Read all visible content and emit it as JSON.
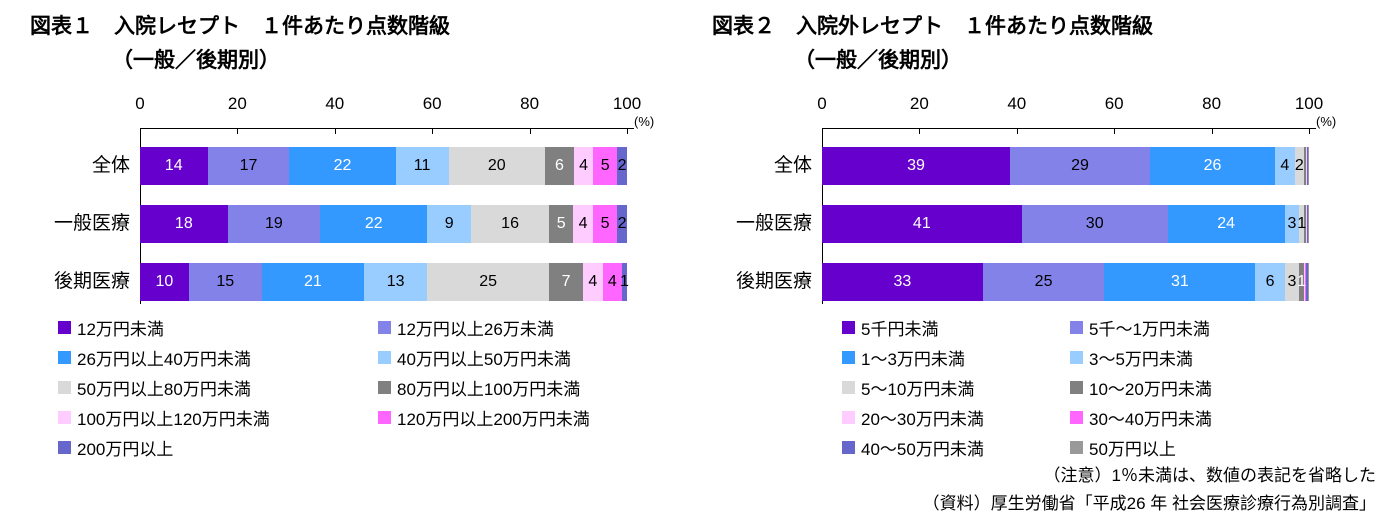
{
  "notes": {
    "line1": "（注意）1％未満は、数値の表記を省略した",
    "line2": "（資料）厚生労働省「平成26 年 社会医療診療行為別調査」"
  },
  "chart_data": [
    {
      "type": "bar",
      "orientation": "horizontal-stacked",
      "title": "図表１　入院レセプト　１件あたり点数階級",
      "subtitle": "（一般／後期別）",
      "unit_label": "(%)",
      "xlim": [
        0,
        100
      ],
      "x_ticks": [
        0,
        20,
        40,
        60,
        80,
        100
      ],
      "grid": false,
      "legend_position": "bottom",
      "categories": [
        "全体",
        "一般医療",
        "後期医療"
      ],
      "series": [
        {
          "name": "12万円未満",
          "color": "#6600CC",
          "label_color": "#FFFFFF",
          "values": [
            14,
            18,
            10
          ]
        },
        {
          "name": "12万円以上26万未満",
          "color": "#8282E8",
          "label_color": "#000000",
          "values": [
            17,
            19,
            15
          ]
        },
        {
          "name": "26万円以上40万円未満",
          "color": "#3399FF",
          "label_color": "#FFFFFF",
          "values": [
            22,
            22,
            21
          ]
        },
        {
          "name": "40万円以上50万円未満",
          "color": "#99CCFF",
          "label_color": "#000000",
          "values": [
            11,
            9,
            13
          ]
        },
        {
          "name": "50万円以上80万円未満",
          "color": "#D9D9D9",
          "label_color": "#000000",
          "values": [
            20,
            16,
            25
          ]
        },
        {
          "name": "80万円以上100万円未満",
          "color": "#808080",
          "label_color": "#FFFFFF",
          "values": [
            6,
            5,
            7
          ]
        },
        {
          "name": "100万円以上120万円未満",
          "color": "#FFCCFF",
          "label_color": "#000000",
          "values": [
            4,
            4,
            4
          ]
        },
        {
          "name": "120万円以上200万円未満",
          "color": "#FF66FF",
          "label_color": "#000000",
          "values": [
            5,
            5,
            4
          ]
        },
        {
          "name": "200万円以上",
          "color": "#6666CC",
          "label_color": "#000000",
          "values": [
            2,
            2,
            1
          ]
        }
      ]
    },
    {
      "type": "bar",
      "orientation": "horizontal-stacked",
      "title": "図表２　入院外レセプト　１件あたり点数階級",
      "subtitle": "（一般／後期別）",
      "unit_label": "(%)",
      "xlim": [
        0,
        100
      ],
      "x_ticks": [
        0,
        20,
        40,
        60,
        80,
        100
      ],
      "grid": false,
      "legend_position": "bottom",
      "categories": [
        "全体",
        "一般医療",
        "後期医療"
      ],
      "series": [
        {
          "name": "5千円未満",
          "color": "#6600CC",
          "label_color": "#FFFFFF",
          "values": [
            39,
            41,
            33
          ]
        },
        {
          "name": "5千～1万円未満",
          "color": "#8282E8",
          "label_color": "#000000",
          "values": [
            29,
            30,
            25
          ]
        },
        {
          "name": "1～3万円未満",
          "color": "#3399FF",
          "label_color": "#FFFFFF",
          "values": [
            26,
            24,
            31
          ]
        },
        {
          "name": "3～5万円未満",
          "color": "#99CCFF",
          "label_color": "#000000",
          "values": [
            4,
            3,
            6
          ]
        },
        {
          "name": "5～10万円未満",
          "color": "#D9D9D9",
          "label_color": "#000000",
          "values": [
            2,
            1,
            3
          ]
        },
        {
          "name": "10～20万円未満",
          "color": "#808080",
          "label_color": "#FFFFFF",
          "values": [
            0.4,
            0.4,
            1
          ]
        },
        {
          "name": "20～30万円未満",
          "color": "#FFCCFF",
          "label_color": "#000000",
          "values": [
            0.1,
            0.1,
            0.2
          ]
        },
        {
          "name": "30～40万円未満",
          "color": "#FF66FF",
          "label_color": "#000000",
          "values": [
            0.1,
            0.1,
            0.2
          ]
        },
        {
          "name": "40～50万円未満",
          "color": "#6666CC",
          "label_color": "#000000",
          "values": [
            0.2,
            0.2,
            0.3
          ]
        },
        {
          "name": "50万円以上",
          "color": "#999999",
          "label_color": "#000000",
          "values": [
            0.2,
            0.2,
            0.3
          ]
        }
      ]
    }
  ]
}
